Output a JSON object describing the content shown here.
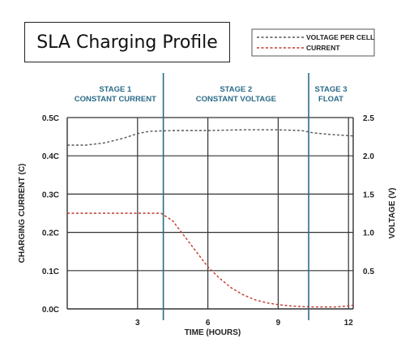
{
  "header": {
    "title": "SLA Charging Profile"
  },
  "chart_data": {
    "type": "line",
    "xlabel": "TIME (HOURS)",
    "ylabel_left": "CHARGING CURRENT (C)",
    "ylabel_right": "VOLTAGE (V)",
    "xlim": [
      0,
      12.2
    ],
    "x_ticks": [
      3,
      6,
      9,
      12
    ],
    "x_tick_labels": [
      "3",
      "6",
      "9",
      "12"
    ],
    "y_left_lim": [
      0,
      0.5
    ],
    "y_left_ticks": [
      0,
      0.1,
      0.2,
      0.3,
      0.4,
      0.5
    ],
    "y_left_tick_labels": [
      "0.0C",
      "0.1C",
      "0.2C",
      "0.3C",
      "0.4C",
      "0.5C"
    ],
    "y_right_lim": [
      0,
      2.5
    ],
    "y_right_ticks": [
      0.5,
      1.0,
      1.5,
      2.0,
      2.5
    ],
    "y_right_tick_labels": [
      "0.5",
      "1.0",
      "1.5",
      "2.0",
      "2.5"
    ],
    "grid": true,
    "stage_dividers": [
      4.1,
      10.3
    ],
    "stages": [
      {
        "line1": "STAGE 1",
        "line2": "CONSTANT CURRENT",
        "x_center": 2.05
      },
      {
        "line1": "STAGE 2",
        "line2": "CONSTANT VOLTAGE",
        "x_center": 7.2
      },
      {
        "line1": "STAGE 3",
        "line2": "FLOAT",
        "x_center": 11.25
      }
    ],
    "legend_position": "top-right",
    "series": [
      {
        "name": "VOLTAGE PER CELL",
        "axis": "right",
        "color": "#555555",
        "x": [
          0,
          0.8,
          1.6,
          2.4,
          3.0,
          3.5,
          4.5,
          6.0,
          7.5,
          9.0,
          10.0,
          10.5,
          11.2,
          12.2
        ],
        "y": [
          2.14,
          2.14,
          2.17,
          2.23,
          2.29,
          2.32,
          2.33,
          2.33,
          2.34,
          2.34,
          2.33,
          2.3,
          2.28,
          2.26
        ]
      },
      {
        "name": "CURRENT",
        "axis": "left",
        "color": "#c0392b",
        "x": [
          0,
          1.0,
          2.0,
          3.0,
          4.0,
          4.5,
          5.0,
          5.5,
          6.0,
          6.5,
          7.0,
          7.5,
          8.0,
          8.5,
          9.0,
          9.5,
          10.0,
          10.5,
          11.0,
          11.5,
          12.0,
          12.2
        ],
        "y": [
          0.25,
          0.25,
          0.25,
          0.25,
          0.25,
          0.23,
          0.19,
          0.15,
          0.11,
          0.08,
          0.055,
          0.037,
          0.024,
          0.016,
          0.011,
          0.008,
          0.006,
          0.005,
          0.005,
          0.005,
          0.008,
          0.01
        ]
      }
    ]
  }
}
